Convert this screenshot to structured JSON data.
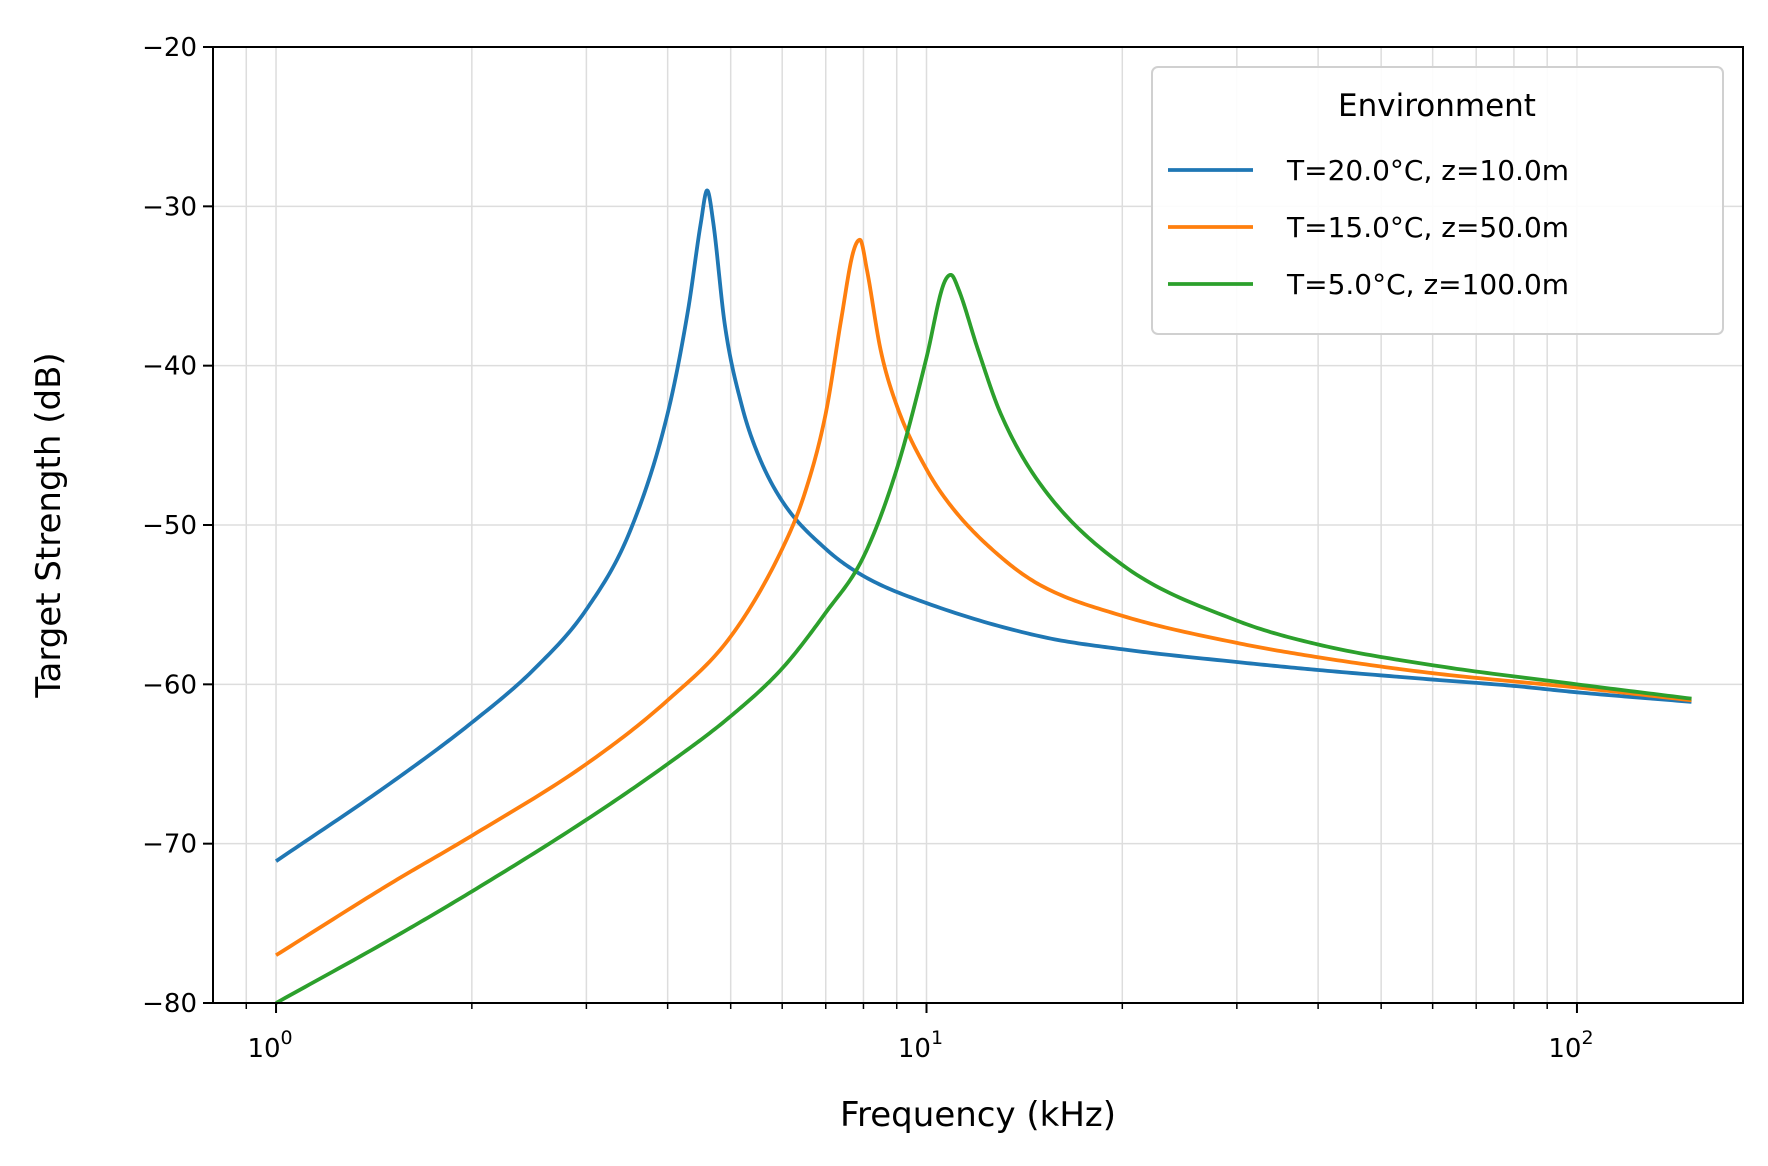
{
  "chart_data": {
    "type": "line",
    "title": "",
    "xlabel": "Frequency (kHz)",
    "ylabel": "Target Strength (dB)",
    "xscale": "log",
    "xlim": [
      0.8,
      180
    ],
    "ylim": [
      -80,
      -20
    ],
    "grid": true,
    "x_ticks": [
      1,
      10,
      100
    ],
    "x_tick_labels": [
      {
        "base": "10",
        "exp": "0"
      },
      {
        "base": "10",
        "exp": "1"
      },
      {
        "base": "10",
        "exp": "2"
      }
    ],
    "y_ticks": [
      -80,
      -70,
      -60,
      -50,
      -40,
      -30,
      -20
    ],
    "y_tick_labels": [
      "−80",
      "−70",
      "−60",
      "−50",
      "−40",
      "−30",
      "−20"
    ],
    "legend": {
      "title": "Environment",
      "placement": "top-right"
    },
    "x_range": [
      1,
      150
    ],
    "series": [
      {
        "name": "T=20.0°C, z=10.0m",
        "color": "#1f77b4",
        "points": [
          [
            1.0,
            -71.1
          ],
          [
            1.5,
            -66.2
          ],
          [
            2.0,
            -62.4
          ],
          [
            2.5,
            -59.0
          ],
          [
            3.0,
            -55.3
          ],
          [
            3.5,
            -50.4
          ],
          [
            4.0,
            -43.0
          ],
          [
            4.3,
            -36.5
          ],
          [
            4.5,
            -31.0
          ],
          [
            4.6,
            -29.0
          ],
          [
            4.7,
            -31.0
          ],
          [
            4.9,
            -37.5
          ],
          [
            5.2,
            -42.5
          ],
          [
            5.5,
            -45.5
          ],
          [
            6.0,
            -48.5
          ],
          [
            7.0,
            -51.5
          ],
          [
            8.0,
            -53.2
          ],
          [
            10.0,
            -54.9
          ],
          [
            15.0,
            -57.0
          ],
          [
            20.0,
            -57.8
          ],
          [
            30.0,
            -58.6
          ],
          [
            40.0,
            -59.1
          ],
          [
            60.0,
            -59.7
          ],
          [
            80.0,
            -60.1
          ],
          [
            100.0,
            -60.5
          ],
          [
            150.0,
            -61.1
          ]
        ]
      },
      {
        "name": "T=15.0°C, z=50.0m",
        "color": "#ff7f0e",
        "points": [
          [
            1.0,
            -77.0
          ],
          [
            1.5,
            -72.5
          ],
          [
            2.0,
            -69.5
          ],
          [
            3.0,
            -65.0
          ],
          [
            4.0,
            -61.0
          ],
          [
            5.0,
            -57.0
          ],
          [
            6.0,
            -51.5
          ],
          [
            6.5,
            -48.0
          ],
          [
            7.0,
            -43.0
          ],
          [
            7.4,
            -37.0
          ],
          [
            7.7,
            -33.0
          ],
          [
            7.9,
            -32.1
          ],
          [
            8.1,
            -34.0
          ],
          [
            8.5,
            -39.0
          ],
          [
            9.0,
            -42.5
          ],
          [
            10.0,
            -46.5
          ],
          [
            11.0,
            -49.0
          ],
          [
            13.0,
            -52.0
          ],
          [
            15.0,
            -53.8
          ],
          [
            20.0,
            -55.7
          ],
          [
            30.0,
            -57.4
          ],
          [
            40.0,
            -58.3
          ],
          [
            60.0,
            -59.3
          ],
          [
            100.0,
            -60.2
          ],
          [
            150.0,
            -61.0
          ]
        ]
      },
      {
        "name": "T=5.0°C, z=100.0m",
        "color": "#2ca02c",
        "points": [
          [
            1.0,
            -80.0
          ],
          [
            1.5,
            -76.0
          ],
          [
            2.0,
            -73.0
          ],
          [
            3.0,
            -68.5
          ],
          [
            4.0,
            -65.0
          ],
          [
            5.0,
            -62.0
          ],
          [
            6.0,
            -59.0
          ],
          [
            7.0,
            -55.5
          ],
          [
            8.0,
            -52.0
          ],
          [
            9.0,
            -46.5
          ],
          [
            10.0,
            -39.5
          ],
          [
            10.6,
            -35.0
          ],
          [
            10.9,
            -34.3
          ],
          [
            11.2,
            -35.2
          ],
          [
            12.0,
            -39.0
          ],
          [
            13.0,
            -43.0
          ],
          [
            15.0,
            -47.5
          ],
          [
            20.0,
            -52.5
          ],
          [
            30.0,
            -56.0
          ],
          [
            40.0,
            -57.5
          ],
          [
            60.0,
            -58.8
          ],
          [
            100.0,
            -60.0
          ],
          [
            150.0,
            -60.9
          ]
        ]
      }
    ]
  }
}
